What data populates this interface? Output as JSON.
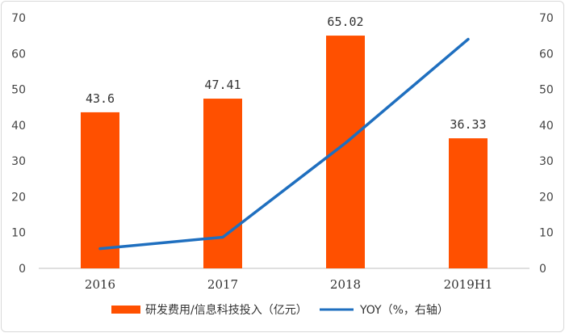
{
  "chart_data": {
    "type": "bar+line",
    "categories": [
      "2016",
      "2017",
      "2018",
      "2019H1"
    ],
    "series": [
      {
        "name": "研发费用/信息科技投入（亿元）",
        "kind": "bar",
        "axis": "left",
        "color": "#FF5000",
        "values": [
          43.6,
          47.41,
          65.02,
          36.33
        ],
        "labels": [
          "43.6",
          "47.41",
          "65.02",
          "36.33"
        ]
      },
      {
        "name": "YOY（%，右轴）",
        "kind": "line",
        "axis": "right",
        "color": "#1F6FBF",
        "values": [
          5.5,
          8.7,
          35,
          64
        ]
      }
    ],
    "yLeft": {
      "min": 0,
      "max": 70,
      "ticks": [
        "0",
        "10",
        "20",
        "30",
        "40",
        "50",
        "60",
        "70"
      ]
    },
    "yRight": {
      "min": 0,
      "max": 70,
      "ticks": [
        "0",
        "10",
        "20",
        "30",
        "40",
        "50",
        "60",
        "70"
      ]
    },
    "grid": false,
    "legend": "bottom"
  }
}
